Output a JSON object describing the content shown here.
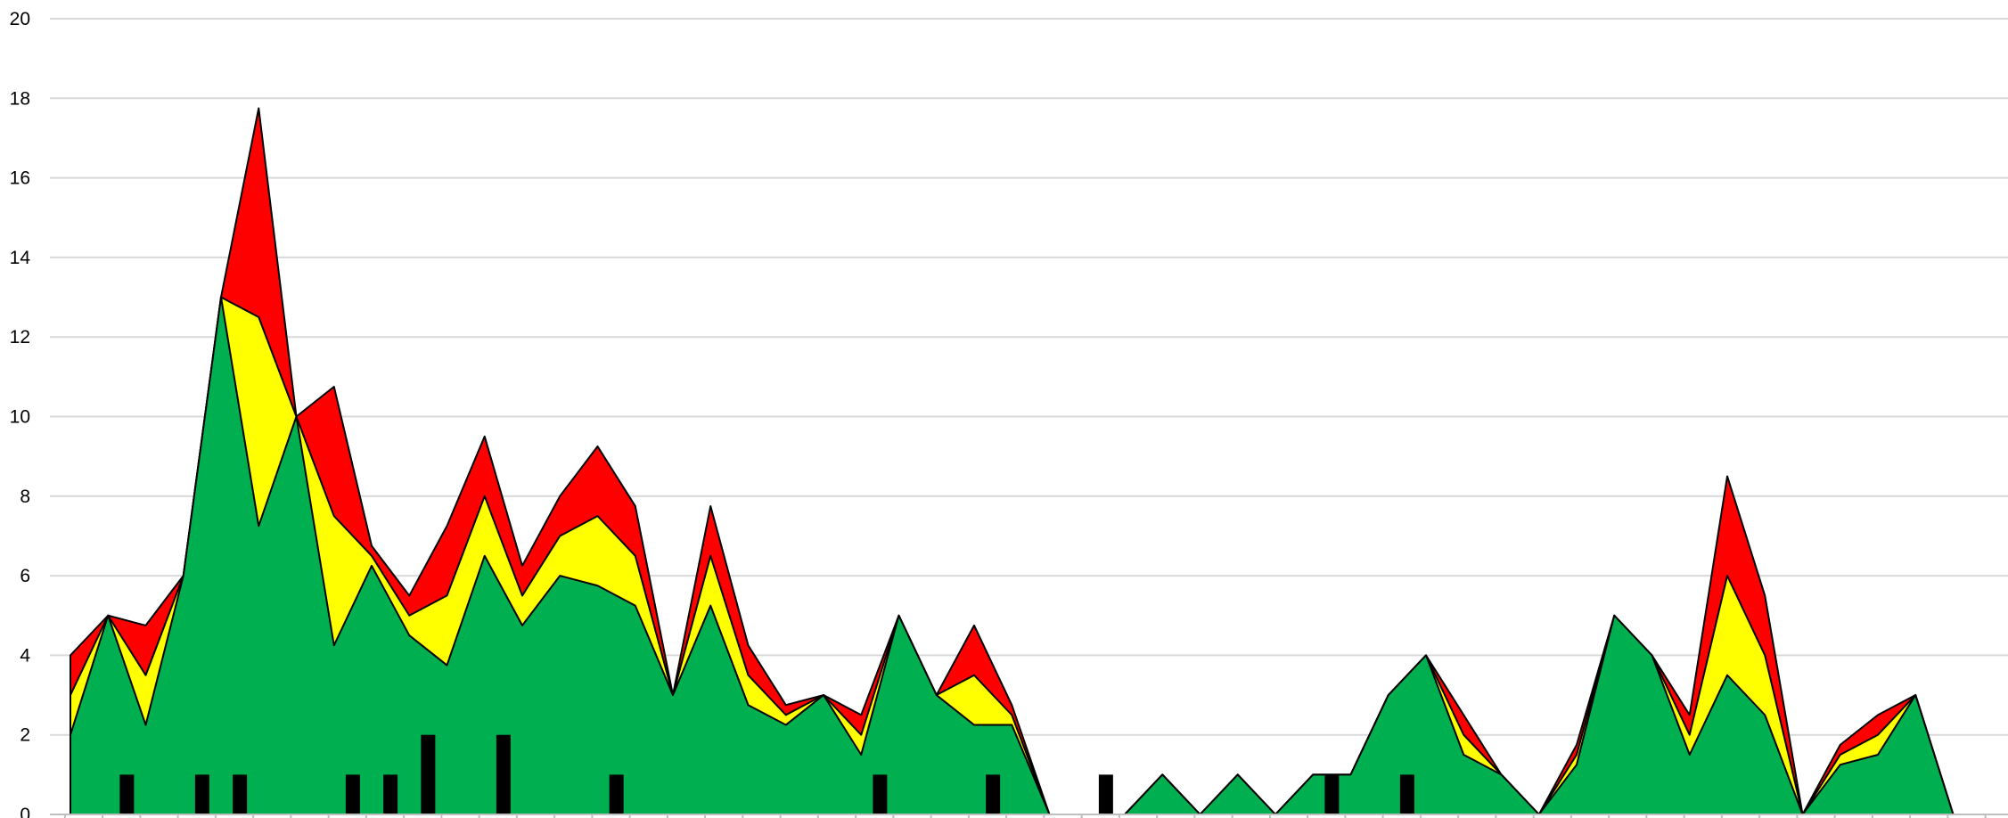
{
  "chart_data": {
    "type": "area",
    "title": "",
    "xlabel": "",
    "ylabel": "",
    "ylim": [
      0,
      20
    ],
    "y_ticks": [
      0,
      2,
      4,
      6,
      8,
      10,
      12,
      14,
      16,
      18,
      20
    ],
    "grid": true,
    "legend": "none",
    "n_points": 53,
    "colors": {
      "green": "#00B050",
      "yellow": "#FFFF00",
      "red": "#FF0000",
      "bar": "#000000",
      "grid": "#D9D9D9",
      "outline": "#000000"
    },
    "series": [
      {
        "values": [
          2,
          5,
          2.25,
          6,
          13,
          7.25,
          10,
          4.25,
          6.25,
          4.5,
          3.75,
          6.5,
          4.75,
          6,
          5.75,
          5.25,
          3,
          5.25,
          2.75,
          2.25,
          3,
          1.5,
          5,
          3,
          2.25,
          2.25,
          0,
          0,
          0,
          1,
          0,
          1,
          0,
          1,
          1,
          3,
          4,
          1.5,
          1,
          0,
          1.25,
          5,
          4,
          1.5,
          3.5,
          2.5,
          0,
          1.25,
          1.5,
          3,
          0,
          0,
          0
        ]
      },
      {
        "values": [
          3,
          5,
          3.5,
          6,
          13,
          12.5,
          10,
          7.5,
          6.5,
          5,
          5.5,
          8,
          5.5,
          7,
          7.5,
          6.5,
          3,
          6.5,
          3.5,
          2.5,
          3,
          2,
          5,
          3,
          3.5,
          2.5,
          0,
          0,
          0,
          1,
          0,
          1,
          0,
          1,
          1,
          3,
          4,
          2,
          1,
          0,
          1.5,
          5,
          4,
          2,
          6,
          4,
          0,
          1.5,
          2,
          3,
          0,
          0,
          0
        ]
      },
      {
        "values": [
          4,
          5,
          4.75,
          6,
          13,
          17.75,
          10,
          10.75,
          6.75,
          5.5,
          7.25,
          9.5,
          6.25,
          8,
          9.25,
          7.75,
          3,
          7.75,
          4.25,
          2.75,
          3,
          2.5,
          5,
          3,
          4.75,
          2.75,
          0,
          0,
          0,
          1,
          0,
          1,
          0,
          1,
          1,
          3,
          4,
          2.5,
          1,
          0,
          1.75,
          5,
          4,
          2.5,
          8.5,
          5.5,
          0,
          1.75,
          2.5,
          3,
          0,
          0,
          0
        ]
      },
      {
        "type": "bar",
        "values": [
          0,
          1,
          0,
          1,
          1,
          0,
          0,
          1,
          1,
          2,
          0,
          2,
          0,
          0,
          1,
          0,
          0,
          0,
          0,
          0,
          0,
          1,
          0,
          0,
          1,
          0,
          0,
          1,
          0,
          0,
          0,
          0,
          0,
          1,
          0,
          1,
          0,
          0,
          0,
          0,
          0,
          0,
          0,
          0,
          0,
          0,
          0,
          0,
          0,
          0,
          0,
          0,
          0
        ]
      }
    ]
  }
}
